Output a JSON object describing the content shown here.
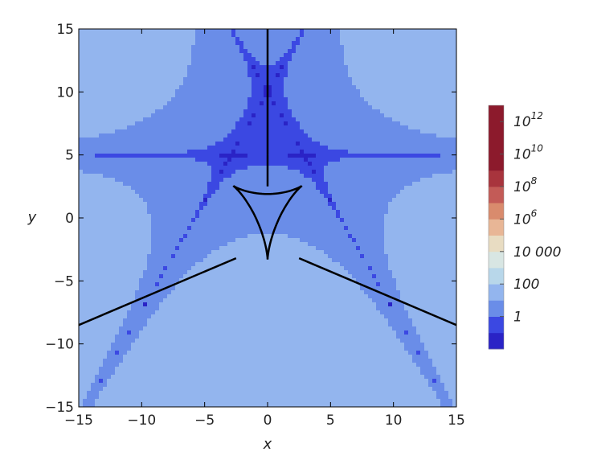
{
  "chart_data": {
    "type": "heatmap",
    "title": "",
    "xlabel": "x",
    "ylabel": "y",
    "xlim": [
      -15,
      15
    ],
    "ylim": [
      -15,
      15
    ],
    "x_ticks": [
      -15,
      -10,
      -5,
      0,
      5,
      10,
      15
    ],
    "y_ticks": [
      -15,
      -10,
      -5,
      0,
      5,
      10,
      15
    ],
    "x_tick_labels": [
      "−15",
      "−10",
      "−5",
      "0",
      "5",
      "10",
      "15"
    ],
    "y_tick_labels": [
      "−15",
      "−10",
      "−5",
      "0",
      "5",
      "10",
      "15"
    ],
    "contour_style": "filled contours with white contour lines",
    "colormap": "blue (low) to red (high), logarithmic",
    "colorbar": {
      "placement": "right",
      "scale": "log",
      "band_boundaries": [
        0.01,
        0.1,
        1,
        10,
        100,
        1000,
        10000,
        100000,
        1000000,
        10000000,
        100000000,
        1000000000,
        10000000000,
        100000000000,
        1000000000000,
        10000000000000
      ],
      "band_colors": [
        "#2a23c6",
        "#3b48e2",
        "#6a8de8",
        "#93b5ee",
        "#b8d7ea",
        "#d8e6e3",
        "#e8dcc2",
        "#e8b696",
        "#d98b6d",
        "#c35b57",
        "#a8343d",
        "#8c1a2c",
        "#8c1a2c",
        "#8c1a2c",
        "#8c1a2c"
      ],
      "tick_labels": [
        {
          "base": "1",
          "exp": ""
        },
        {
          "base": "100",
          "exp": ""
        },
        {
          "base": "10 000",
          "exp": ""
        },
        {
          "base": "10",
          "exp": "6"
        },
        {
          "base": "10",
          "exp": "8"
        },
        {
          "base": "10",
          "exp": "10"
        },
        {
          "base": "10",
          "exp": "12"
        }
      ],
      "tick_values": [
        1,
        100,
        10000,
        1000000,
        100000000,
        10000000000,
        1000000000000
      ]
    },
    "boundary_curve": {
      "description": "black boundary: vertical segment x=0 for y>0, two straight rays from (±2.5,-3.2) to (±15,-8.5), and an inner cusped curve (deltoid-like) around the origin",
      "color": "#000000"
    }
  }
}
